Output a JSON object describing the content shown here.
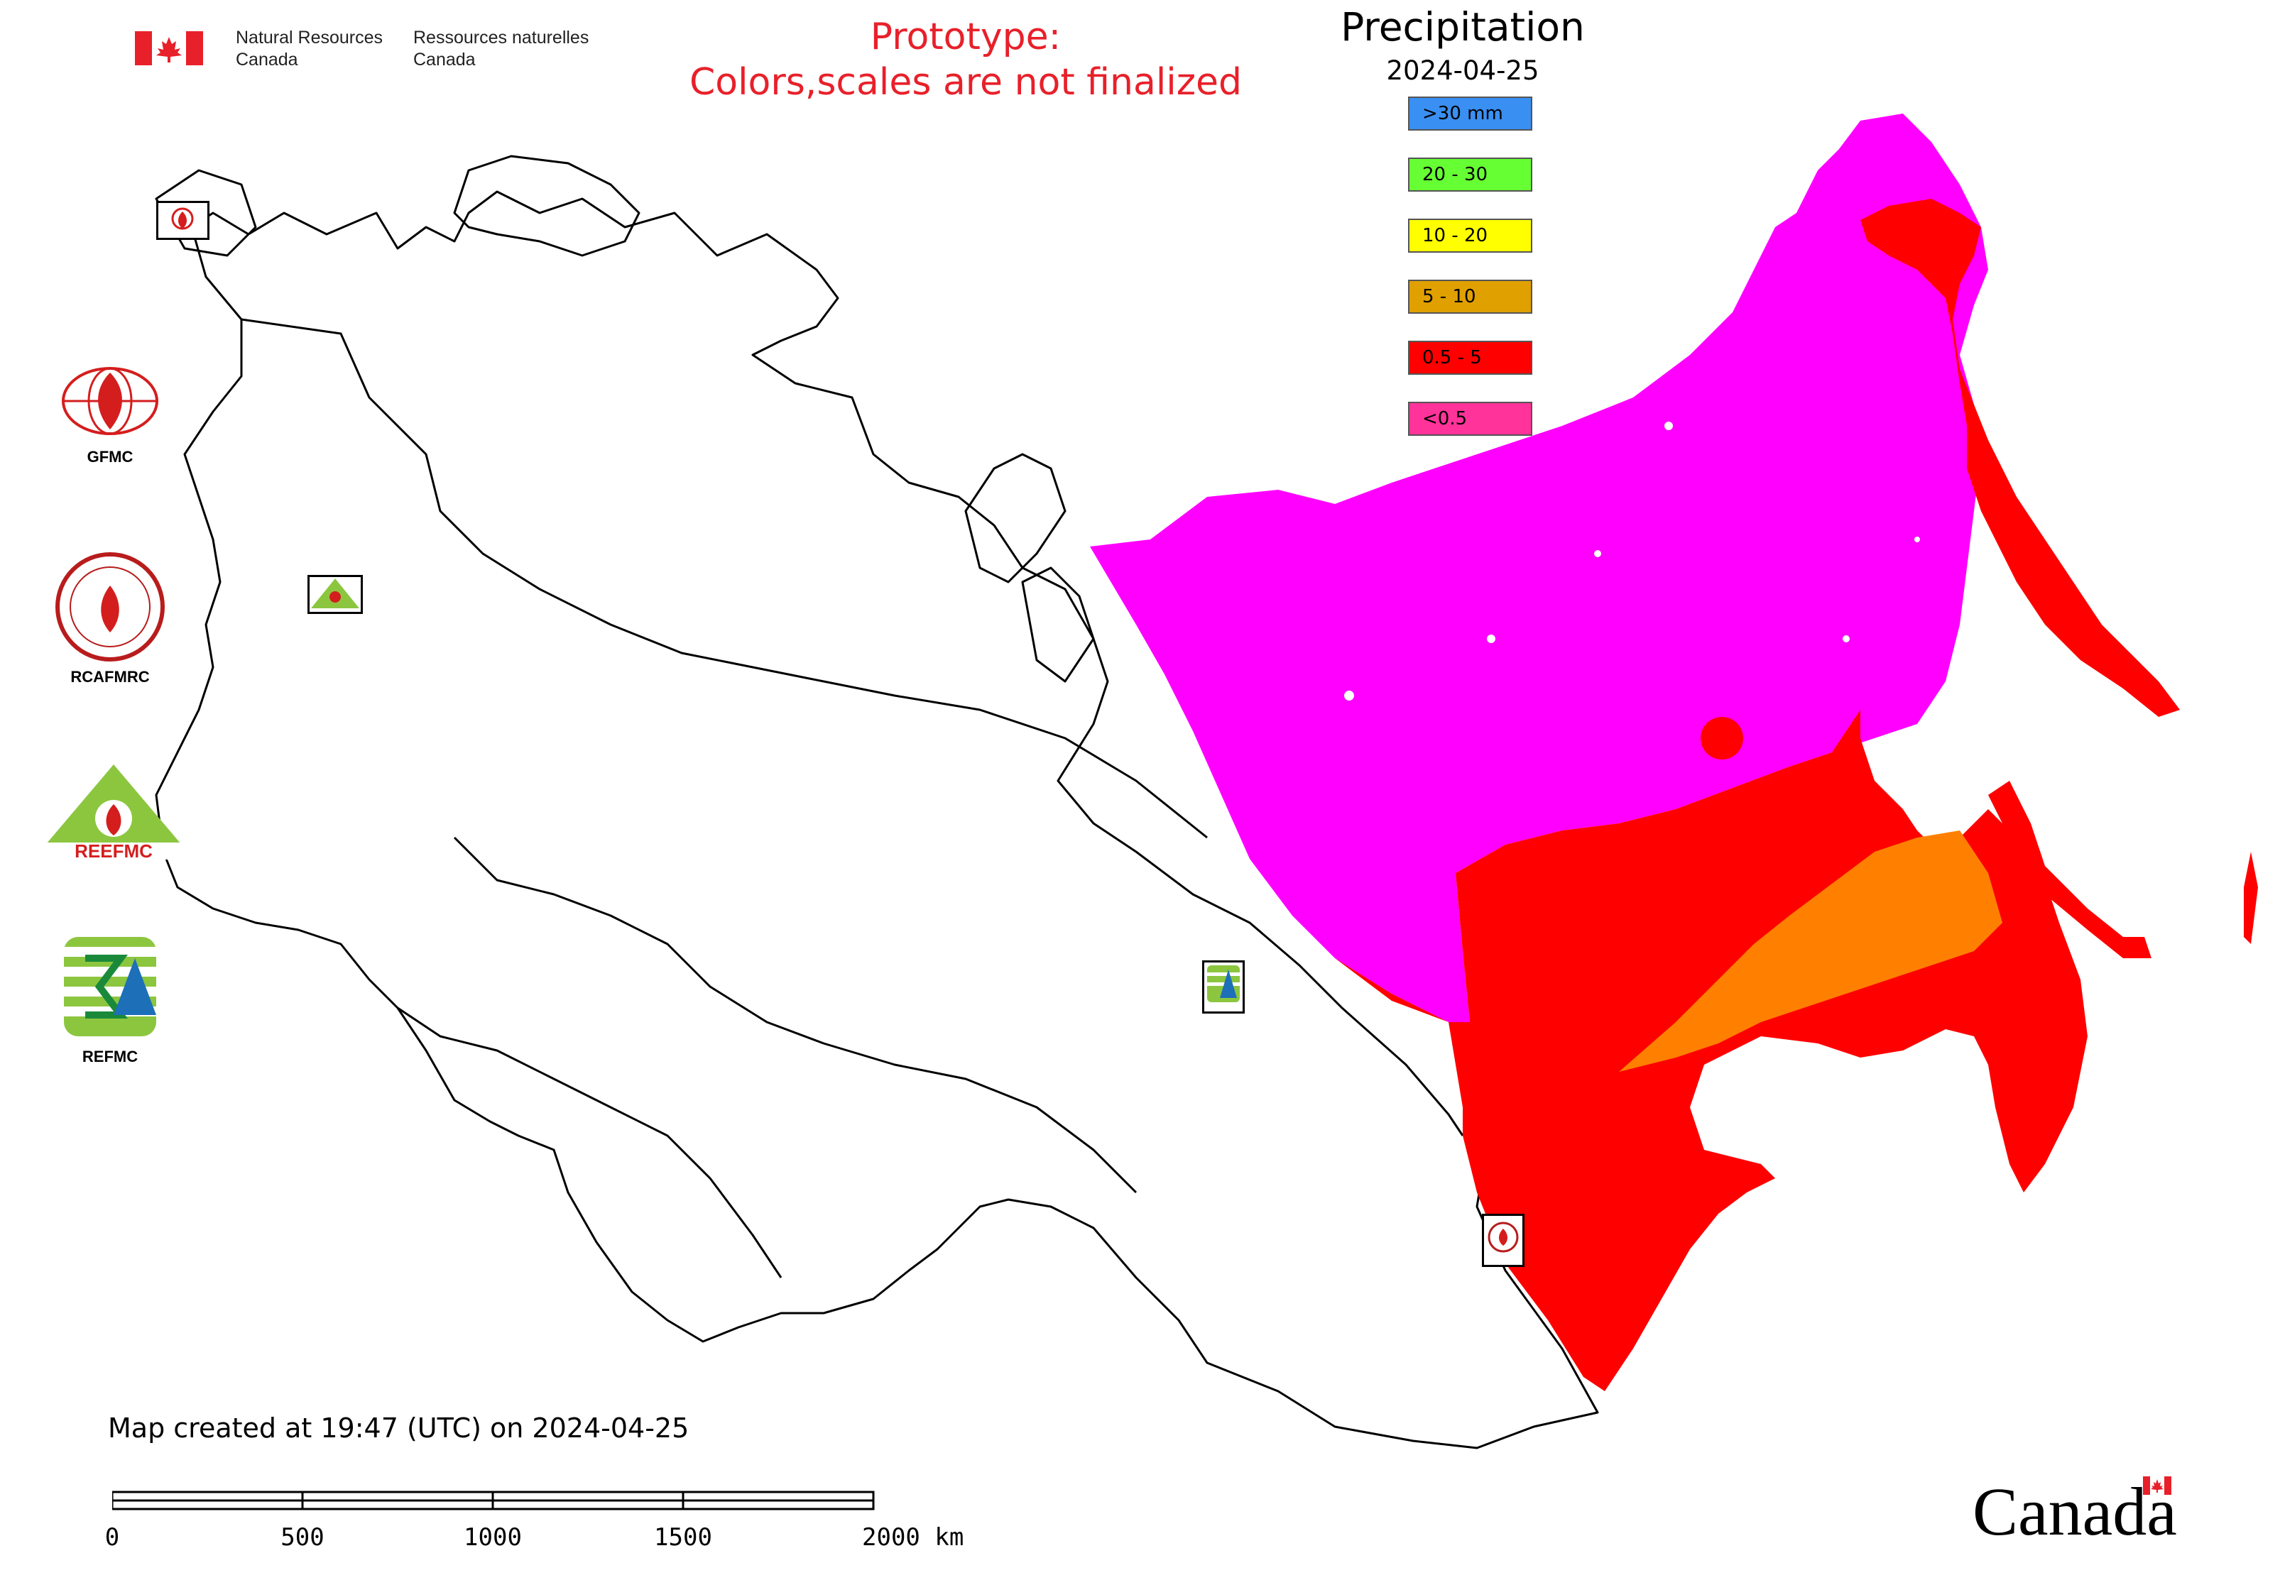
{
  "header": {
    "org_en": "Natural Resources\nCanada",
    "org_fr": "Ressources naturelles\nCanada",
    "prototype_line1": "Prototype:",
    "prototype_line2": "Colors,scales are not finalized"
  },
  "legend": {
    "title": "Precipitation",
    "date": "2024-04-25",
    "items": [
      {
        "label": ">30 mm",
        "color": "#3a8ff2"
      },
      {
        "label": "20 - 30",
        "color": "#66ff33"
      },
      {
        "label": "10 - 20",
        "color": "#ffff00"
      },
      {
        "label": "5 - 10",
        "color": "#e0a000"
      },
      {
        "label": "0.5 - 5",
        "color": "#ff0000"
      },
      {
        "label": "<0.5",
        "color": "#ff3399"
      }
    ]
  },
  "partners": [
    {
      "label": "GFMC",
      "icon": "gfmc-logo"
    },
    {
      "label": "RCAFMRC",
      "icon": "rcafmrc-logo"
    },
    {
      "label": "",
      "icon": "reefmc-logo"
    },
    {
      "label": "REFMC",
      "icon": "refmc-logo"
    }
  ],
  "map": {
    "colors": {
      "low": "#ff00ff",
      "mid": "#ff0000",
      "high": "#ff8000",
      "border": "#000000"
    },
    "small_logo_labels": {
      "gfmc": "GFMC",
      "refmc": "REFMC",
      "rcafmrc": "RCAFMRC"
    }
  },
  "footer": {
    "created": "Map created at 19:47 (UTC) on 2024-04-25",
    "scale_labels": [
      "0",
      "500",
      "1000",
      "1500",
      "2000 km"
    ],
    "wordmark": "Canada"
  }
}
